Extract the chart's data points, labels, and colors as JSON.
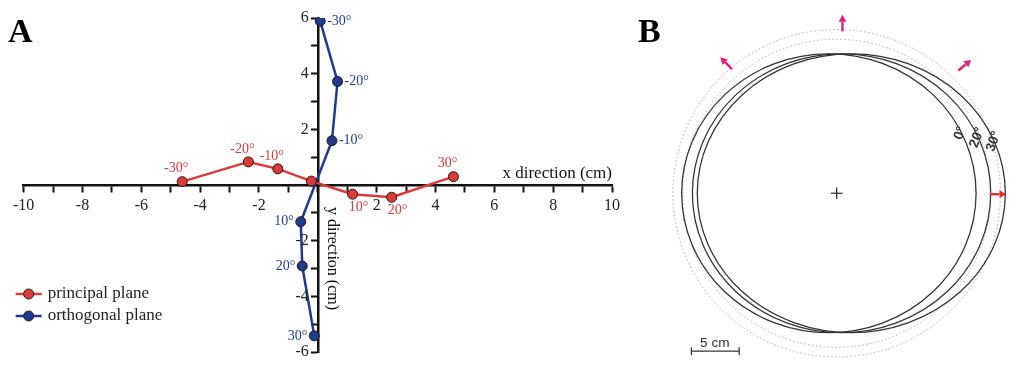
{
  "chart_data": [
    {
      "type": "line",
      "title": "A",
      "xlabel": "x direction (cm)",
      "ylabel": "y direction (cm)",
      "xlim": [
        -10,
        10
      ],
      "ylim": [
        -6,
        6
      ],
      "xticks": [
        -10,
        {
          "value": -9,
          "label": null
        },
        -8,
        {
          "value": -7,
          "label": null
        },
        -6,
        {
          "value": -5,
          "label": null
        },
        -4,
        {
          "value": -3,
          "label": null
        },
        -2,
        {
          "value": -1,
          "label": null
        },
        {
          "value": 0,
          "label": null
        },
        {
          "value": 1,
          "label": null
        },
        2,
        {
          "value": 3,
          "label": null
        },
        4,
        {
          "value": 5,
          "label": null
        },
        6,
        {
          "value": 7,
          "label": null
        },
        8,
        {
          "value": 9,
          "label": null
        },
        10
      ],
      "yticks": [
        -6,
        {
          "value": -5,
          "label": null
        },
        -4,
        {
          "value": -3,
          "label": null
        },
        -2,
        {
          "value": -1,
          "label": null
        },
        {
          "value": 0,
          "label": null
        },
        {
          "value": 1,
          "label": null
        },
        2,
        {
          "value": 3,
          "label": null
        },
        4,
        {
          "value": 5,
          "label": null
        },
        6
      ],
      "series": [
        {
          "name": "principal plane",
          "color": "#d93a3a",
          "x": [
            -4.61,
            -2.36,
            -1.36,
            -0.22,
            1.18,
            2.51,
            4.61
          ],
          "values": [
            0.12,
            0.83,
            0.58,
            0.14,
            -0.33,
            -0.44,
            0.3
          ]
        },
        {
          "name": "orthogonal plane",
          "color": "#1f3b8f",
          "x": [
            0.08,
            0.67,
            0.48,
            -0.58,
            -0.53,
            -0.12
          ],
          "values": [
            5.89,
            3.72,
            1.59,
            -1.32,
            -2.91,
            -5.42
          ]
        }
      ],
      "annotations": [
        {
          "text": "-30°",
          "x": -4.61,
          "y": 0.12
        },
        {
          "text": "-20°",
          "x": -2.36,
          "y": 0.83
        },
        {
          "text": "-10°",
          "x": -1.36,
          "y": 0.58
        },
        {
          "text": "10°",
          "x": 1.18,
          "y": -0.33
        },
        {
          "text": "20°",
          "x": 2.51,
          "y": -0.44
        },
        {
          "text": "30°",
          "x": 4.61,
          "y": 0.3
        },
        {
          "text": "-30°",
          "x": 0.08,
          "y": 5.89
        },
        {
          "text": "-20°",
          "x": 0.67,
          "y": 3.72
        },
        {
          "text": "-10°",
          "x": 0.48,
          "y": 1.59
        },
        {
          "text": "10°",
          "x": -0.58,
          "y": -1.32
        },
        {
          "text": "20°",
          "x": -0.53,
          "y": -2.91
        },
        {
          "text": "30°",
          "x": -0.12,
          "y": -5.42
        }
      ],
      "marker": "circle",
      "legend": "bottom left",
      "grid": false
    },
    {
      "type": "other",
      "title": "B",
      "annotations": [
        "0°",
        "20°",
        "30°",
        "5 cm"
      ]
    }
  ]
}
